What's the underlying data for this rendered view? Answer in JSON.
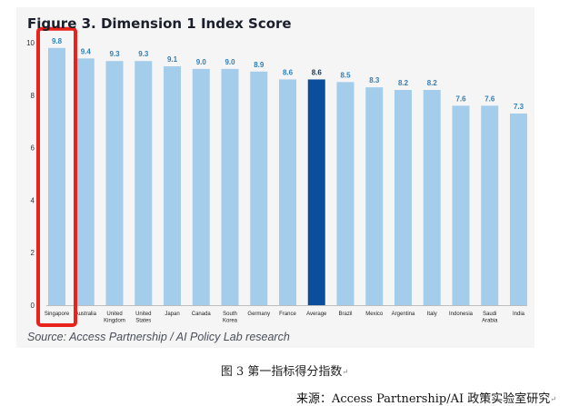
{
  "figure": {
    "title": "Figure 3. Dimension 1 Index Score",
    "source": "Source: Access Partnership / AI Policy Lab research"
  },
  "chart_data": {
    "type": "bar",
    "title": "Figure 3. Dimension 1 Index Score",
    "xlabel": "",
    "ylabel": "",
    "ylim": [
      0,
      10
    ],
    "yticks": [
      0,
      2,
      4,
      6,
      8,
      10
    ],
    "grid": false,
    "categories": [
      "Singapore",
      "Australia",
      "United Kingdom",
      "United States",
      "Japan",
      "Canada",
      "South Korea",
      "Germany",
      "France",
      "Average",
      "Brazil",
      "Mexico",
      "Argentina",
      "Italy",
      "Indonesia",
      "Saudi Arabia",
      "India"
    ],
    "category_labels": [
      [
        "Singapore"
      ],
      [
        "Australia"
      ],
      [
        "United",
        "Kingdom"
      ],
      [
        "United",
        "States"
      ],
      [
        "Japan"
      ],
      [
        "Canada"
      ],
      [
        "South",
        "Korea"
      ],
      [
        "Germany"
      ],
      [
        "France"
      ],
      [
        "Average"
      ],
      [
        "Brazil"
      ],
      [
        "Mexico"
      ],
      [
        "Argentina"
      ],
      [
        "Italy"
      ],
      [
        "Indonesia"
      ],
      [
        "Saudi",
        "Arabia"
      ],
      [
        "India"
      ]
    ],
    "values": [
      9.8,
      9.4,
      9.3,
      9.3,
      9.1,
      9.0,
      9.0,
      8.9,
      8.6,
      8.6,
      8.5,
      8.3,
      8.2,
      8.2,
      7.6,
      7.6,
      7.3
    ],
    "value_labels": [
      "9.8",
      "9.4",
      "9.3",
      "9.3",
      "9.1",
      "9.0",
      "9.0",
      "8.9",
      "8.6",
      "8.6",
      "8.5",
      "8.3",
      "8.2",
      "8.2",
      "7.6",
      "7.6",
      "7.3"
    ],
    "bar_color": "#a3cdea",
    "highlight_bar": "Average",
    "highlight_color": "#0b4f9c",
    "value_label_color": "#2f7fb7",
    "highlight_label_color": "#1b3554",
    "annotation": {
      "type": "box",
      "target": "Singapore",
      "color": "#e8231c"
    }
  },
  "caption_cn": {
    "text": "图 3 第一指标得分指数"
  },
  "source_cn": {
    "text": "来源：Access Partnership/AI 政策实验室研究"
  }
}
